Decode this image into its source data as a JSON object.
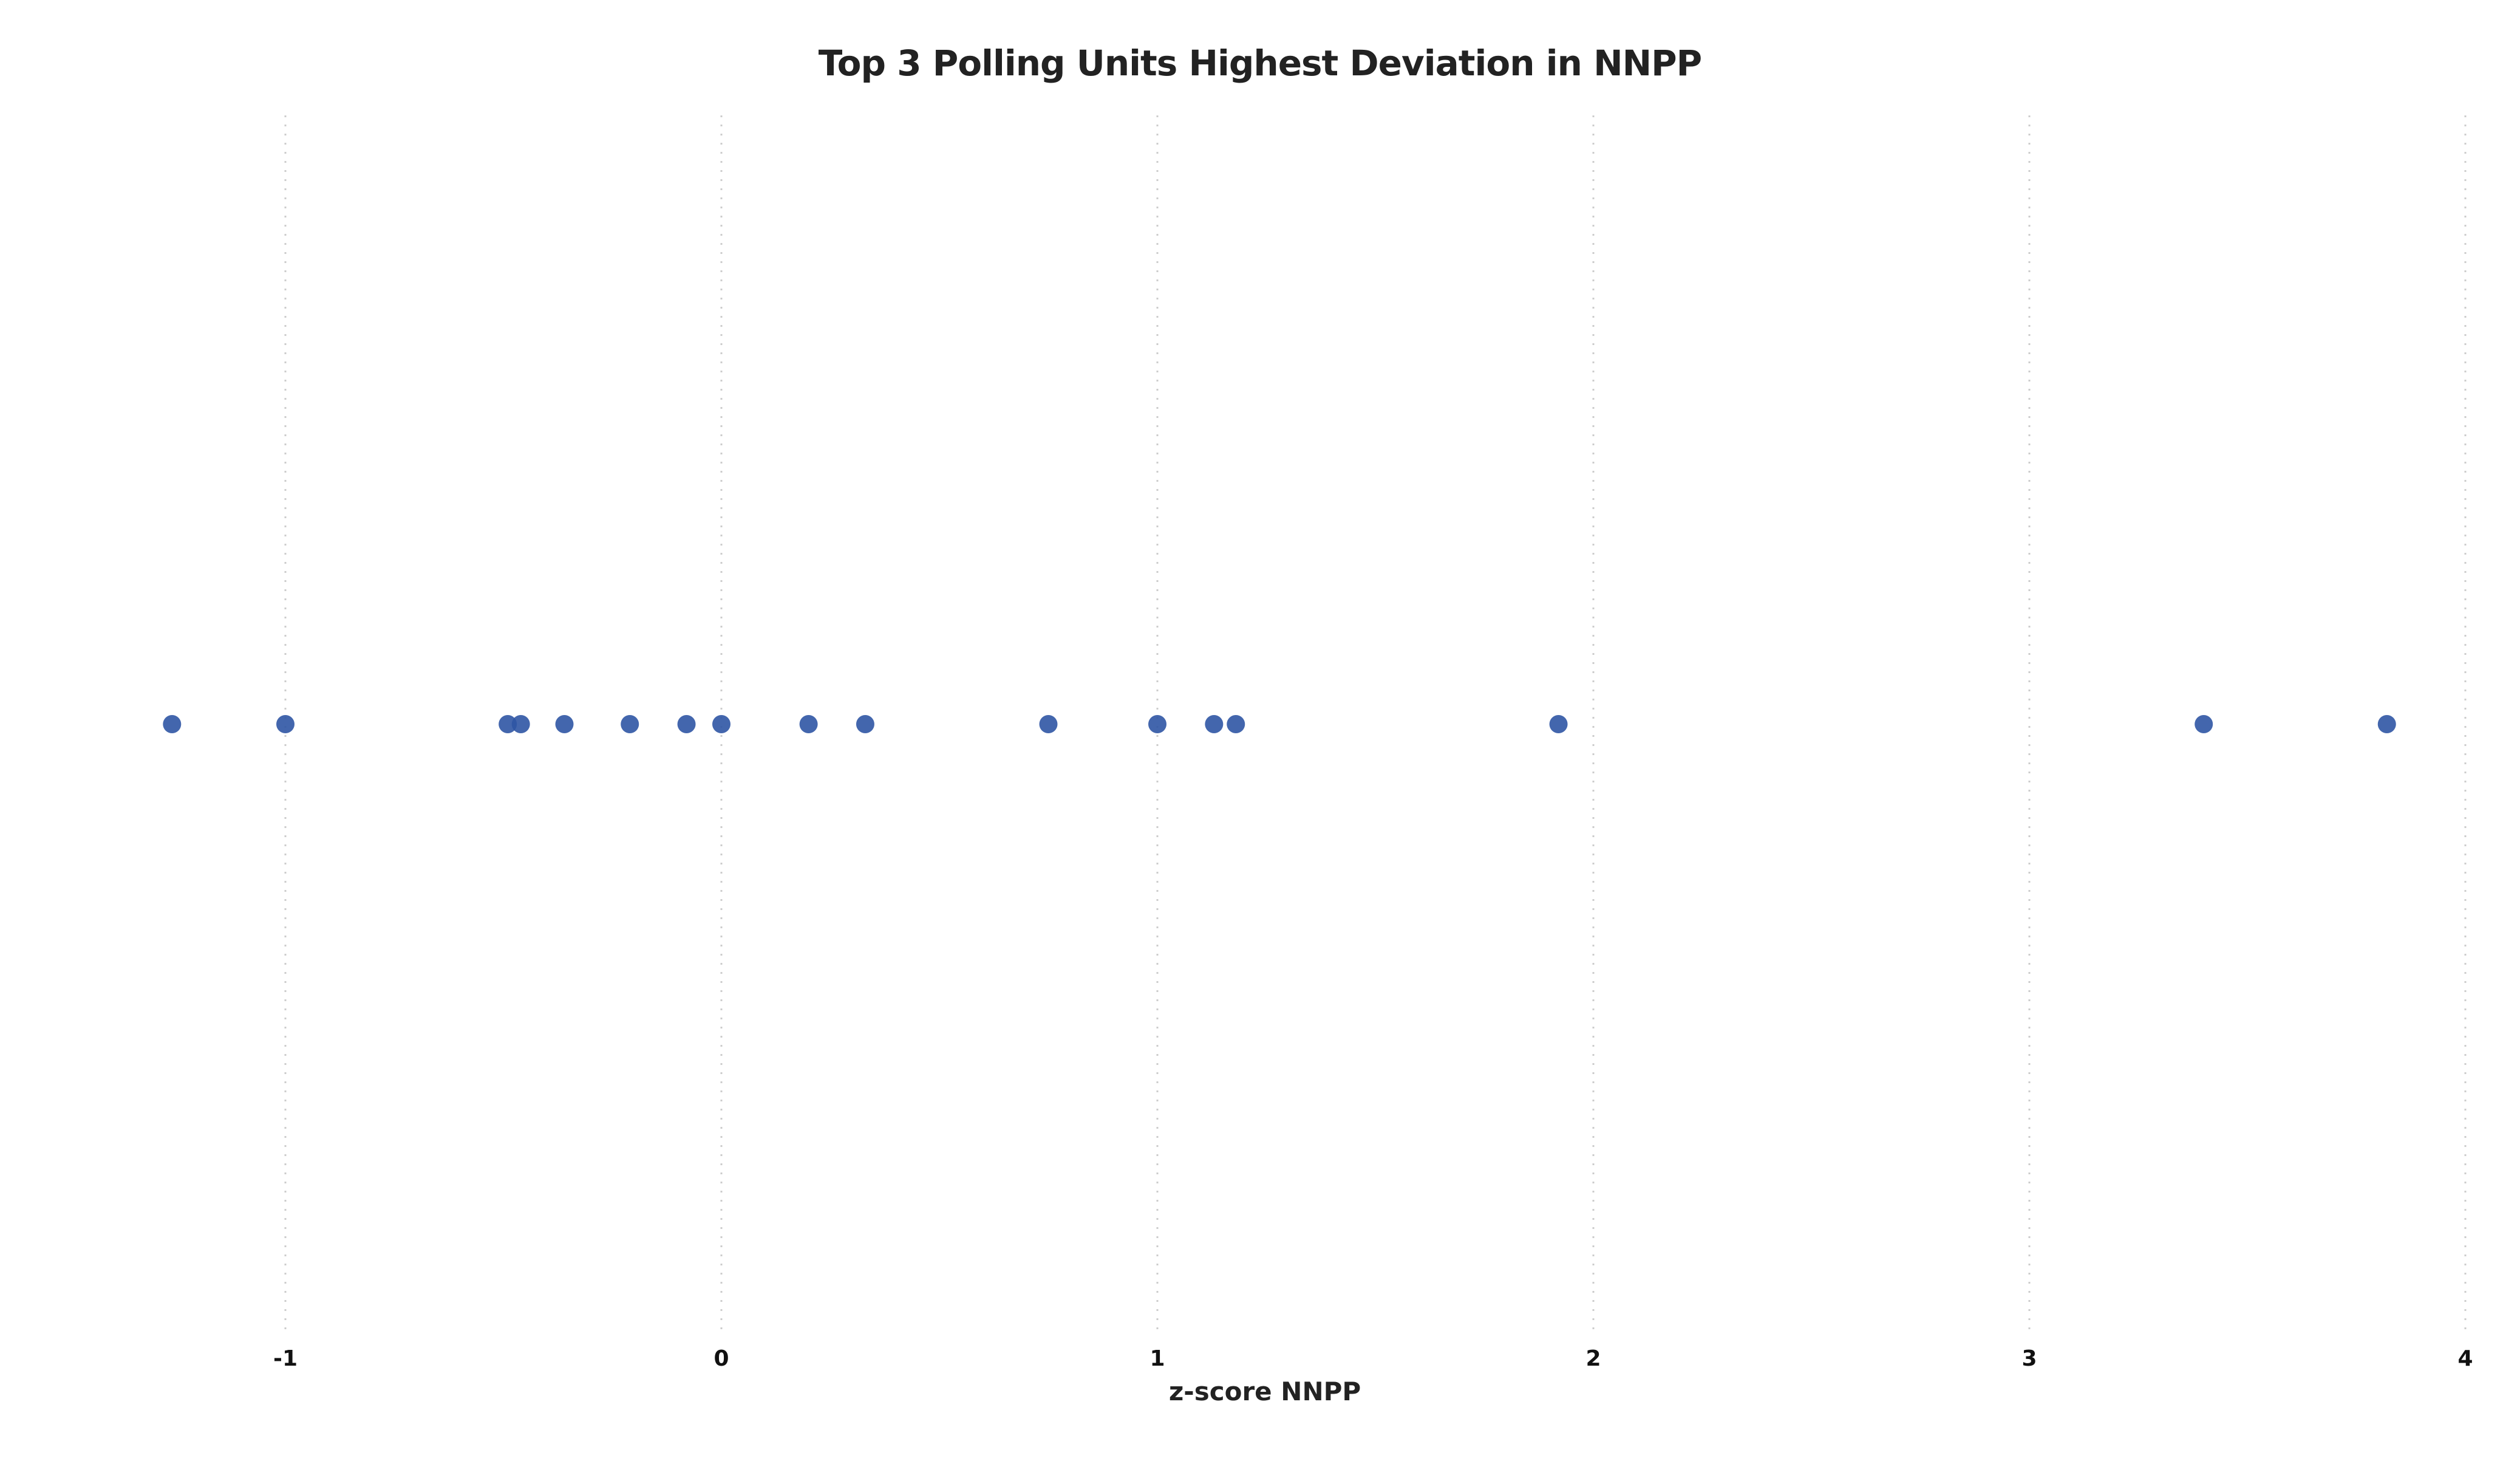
{
  "colors": {
    "point": "#2F55A4",
    "grid": "#CCCCCC",
    "text": "#222222",
    "background": "#FFFFFF"
  },
  "chart_data": {
    "type": "scatter",
    "title": "Top 3 Polling Units Highest Deviation in NNPP",
    "xlabel": "z-score NNPP",
    "ylabel": "",
    "xlim": [
      -1.27,
      4.0
    ],
    "xticks": [
      -1,
      0,
      1,
      2,
      3,
      4
    ],
    "xtick_labels": [
      "-1",
      "0",
      "1",
      "2",
      "3",
      "4"
    ],
    "grid": "vertical dotted",
    "legend": "none",
    "series": [
      {
        "x": [
          -1.26,
          -1.0,
          -0.49,
          -0.46,
          -0.36,
          -0.21,
          -0.08,
          0.0,
          0.2,
          0.33,
          0.75,
          1.0,
          1.13,
          1.18,
          1.92,
          3.4,
          3.82
        ]
      }
    ]
  }
}
